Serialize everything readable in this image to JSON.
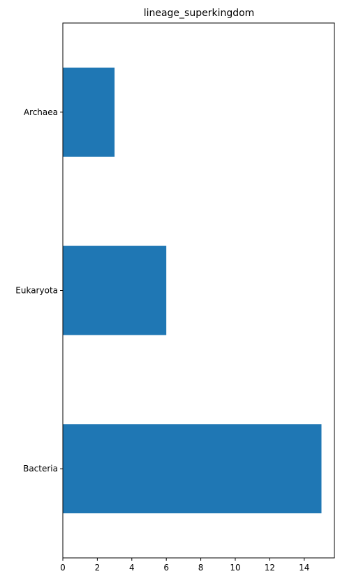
{
  "chart_data": {
    "type": "bar",
    "orientation": "horizontal",
    "title": "lineage_superkingdom",
    "xlabel": "",
    "ylabel": "",
    "categories": [
      "Bacteria",
      "Eukaryota",
      "Archaea"
    ],
    "values": [
      15,
      6,
      3
    ],
    "xlim": [
      0,
      15.75
    ],
    "xticks": [
      0,
      2,
      4,
      6,
      8,
      10,
      12,
      14
    ],
    "grid": false,
    "legend": "none",
    "bar_color": "#1f77b4",
    "axis_color": "#000000"
  }
}
